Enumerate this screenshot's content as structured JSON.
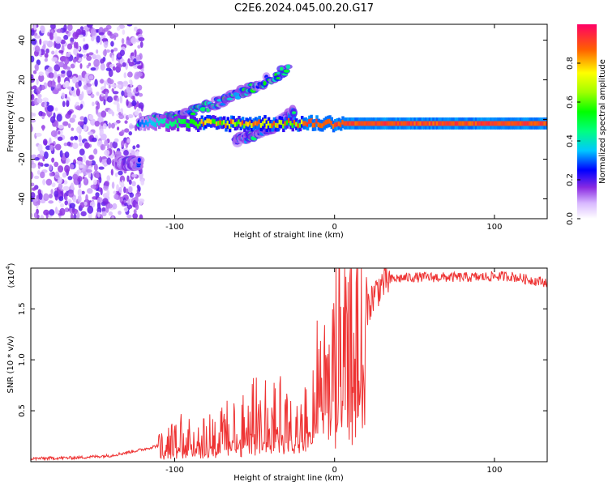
{
  "title": "C2E6.2024.045.00.20.G17",
  "chart_data": [
    {
      "type": "heatmap",
      "xlabel": "Height of straight line (km)",
      "ylabel": "Frequency (Hz)",
      "xlim": [
        -190,
        133
      ],
      "ylim": [
        -50,
        48
      ],
      "xticks": [
        -100,
        0,
        100
      ],
      "yticks": [
        -40,
        -20,
        0,
        20,
        40
      ],
      "colorbar": {
        "label": "Normalized spectral amplitude",
        "range": [
          0.0,
          1.0
        ],
        "ticks": [
          "0.0",
          "0.2",
          "0.4",
          "0.6",
          "0.8"
        ]
      },
      "features": [
        {
          "name": "scattered noise",
          "x": [
            -190,
            -120
          ],
          "y": [
            -50,
            48
          ],
          "level": 0.1
        },
        {
          "name": "isolated blob",
          "x": [
            -136,
            -122
          ],
          "y": [
            -22,
            -22
          ],
          "level": 0.3
        },
        {
          "name": "upper branch",
          "x": [
            -122,
            -28
          ],
          "y": [
            -1,
            26
          ],
          "level": 0.4
        },
        {
          "name": "lower branch",
          "x": [
            -62,
            -25
          ],
          "y": [
            -10,
            4
          ],
          "level": 0.35
        },
        {
          "name": "main band",
          "x": [
            -122,
            133
          ],
          "y": [
            -2,
            -2
          ],
          "level": 0.9
        }
      ]
    },
    {
      "type": "line",
      "xlabel": "Height of straight line (km)",
      "ylabel": "SNR (10 * v/v)",
      "yscale_label": "(x10",
      "yscale_exp": "4",
      "xlim": [
        -190,
        133
      ],
      "ylim": [
        0,
        19000
      ],
      "xticks": [
        -100,
        0,
        100
      ],
      "yticks": [
        0.5,
        1.0,
        1.5
      ],
      "ytick_labels": [
        "0.5",
        "1.0",
        "1.5"
      ],
      "color": "#ee3333",
      "series": [
        {
          "x": [
            -190,
            -160,
            -140,
            -130,
            -120,
            -110,
            -100,
            -95,
            -90,
            -80,
            -70,
            -60,
            -50,
            -40,
            -35,
            -30,
            -25,
            -20,
            -15,
            -10,
            -5,
            0,
            5,
            10,
            15,
            20,
            25,
            30,
            35,
            40,
            50,
            60,
            70,
            80,
            90,
            100,
            110,
            120,
            133
          ],
          "y": [
            300,
            400,
            600,
            900,
            1200,
            1600,
            2300,
            2800,
            3000,
            2900,
            3400,
            3800,
            4800,
            5500,
            5300,
            4000,
            3300,
            3800,
            6000,
            9000,
            11500,
            12200,
            12800,
            13500,
            14000,
            15000,
            16500,
            17500,
            17900,
            18000,
            18100,
            18100,
            18100,
            18100,
            18100,
            18200,
            18200,
            17900,
            17600
          ]
        }
      ]
    }
  ]
}
